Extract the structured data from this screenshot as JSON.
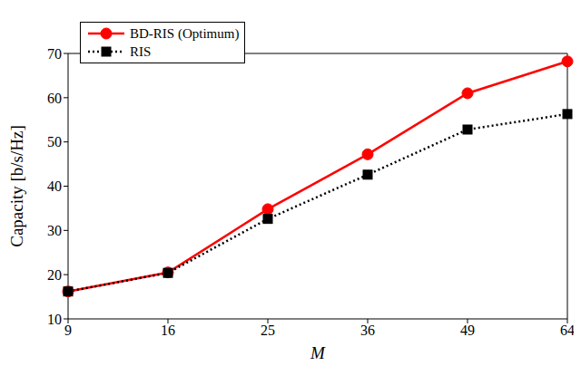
{
  "chart_data": {
    "type": "line",
    "x_label": "M",
    "y_label": "Capacity [b/s/Hz]",
    "categories": [
      9,
      16,
      25,
      36,
      49,
      64
    ],
    "ylim": [
      10,
      70
    ],
    "yticks": [
      10,
      20,
      30,
      40,
      50,
      60,
      70
    ],
    "grid": false,
    "legend": "upper left",
    "series": [
      {
        "name": "BD-RIS (Optimum)",
        "color": "#ff0000",
        "marker": "circle",
        "line_style": "solid",
        "values": [
          16.2,
          20.5,
          34.8,
          47.2,
          61.0,
          68.2
        ]
      },
      {
        "name": "RIS",
        "color": "#000000",
        "marker": "square",
        "line_style": "dotted",
        "values": [
          16.2,
          20.4,
          32.6,
          42.6,
          52.8,
          56.3
        ]
      }
    ]
  }
}
